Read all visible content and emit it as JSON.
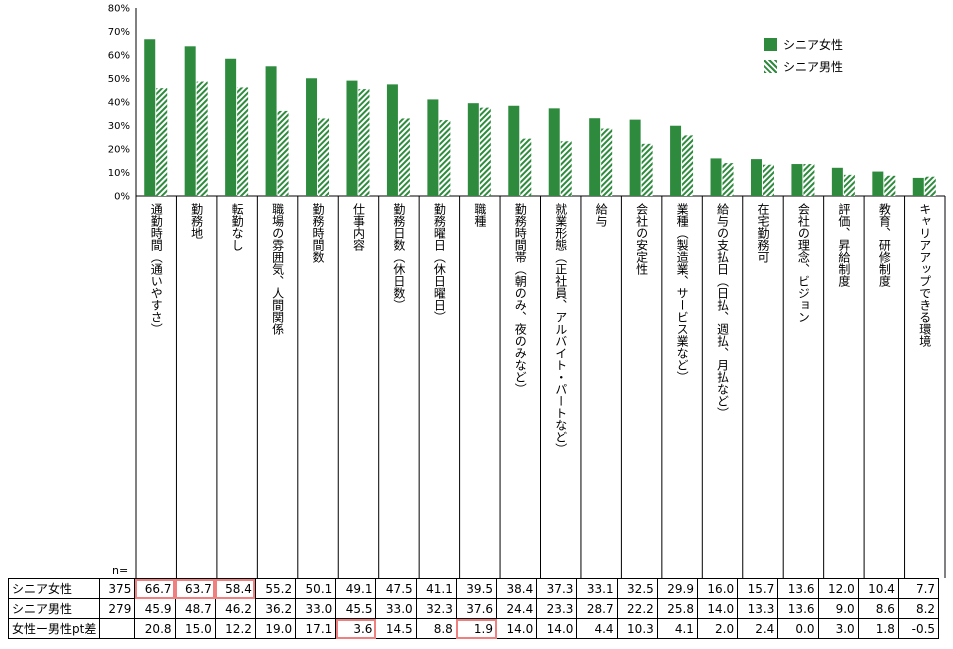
{
  "chart_data": {
    "type": "bar",
    "ylim": [
      0,
      80
    ],
    "yticks": [
      "0%",
      "10%",
      "20%",
      "30%",
      "40%",
      "50%",
      "60%",
      "70%",
      "80%"
    ],
    "categories": [
      "通勤時間（通いやすさ）",
      "勤務地",
      "転勤なし",
      "職場の雰囲気、人間関係",
      "勤務時間数",
      "仕事内容",
      "勤務日数（休日数）",
      "勤務曜日（休日曜日）",
      "職種",
      "勤務時間帯（朝のみ、夜のみなど）",
      "就業形態（正社員、アルバイト・パートなど）",
      "給与",
      "会社の安定性",
      "業種（製造業、サービス業など）",
      "給与の支払日（日払、週払、月払など）",
      "在宅勤務可",
      "会社の理念、ビジョン",
      "評価、昇給制度",
      "教育、研修制度",
      "キャリアアップできる環境"
    ],
    "series": [
      {
        "name": "シニア女性",
        "n": "375",
        "color": "#2e8b3e",
        "pattern": "solid",
        "values": [
          66.7,
          63.7,
          58.4,
          55.2,
          50.1,
          49.1,
          47.5,
          41.1,
          39.5,
          38.4,
          37.3,
          33.1,
          32.5,
          29.9,
          16.0,
          15.7,
          13.6,
          12.0,
          10.4,
          7.7
        ]
      },
      {
        "name": "シニア男性",
        "n": "279",
        "color": "#2e8b3e",
        "pattern": "hatched",
        "values": [
          45.9,
          48.7,
          46.2,
          36.2,
          33.0,
          45.5,
          33.0,
          32.3,
          37.6,
          24.4,
          23.3,
          28.7,
          22.2,
          25.8,
          14.0,
          13.3,
          13.6,
          9.0,
          8.6,
          8.2
        ]
      }
    ],
    "diff": {
      "name": "女性ー男性pt差",
      "values": [
        20.8,
        15.0,
        12.2,
        19.0,
        17.1,
        3.6,
        14.5,
        8.8,
        1.9,
        14.0,
        14.0,
        4.4,
        10.3,
        4.1,
        2.0,
        2.4,
        0.0,
        3.0,
        1.8,
        -0.5
      ]
    },
    "n_label": "n=",
    "legend_position": "top-right",
    "highlight_color": "#f08080"
  }
}
